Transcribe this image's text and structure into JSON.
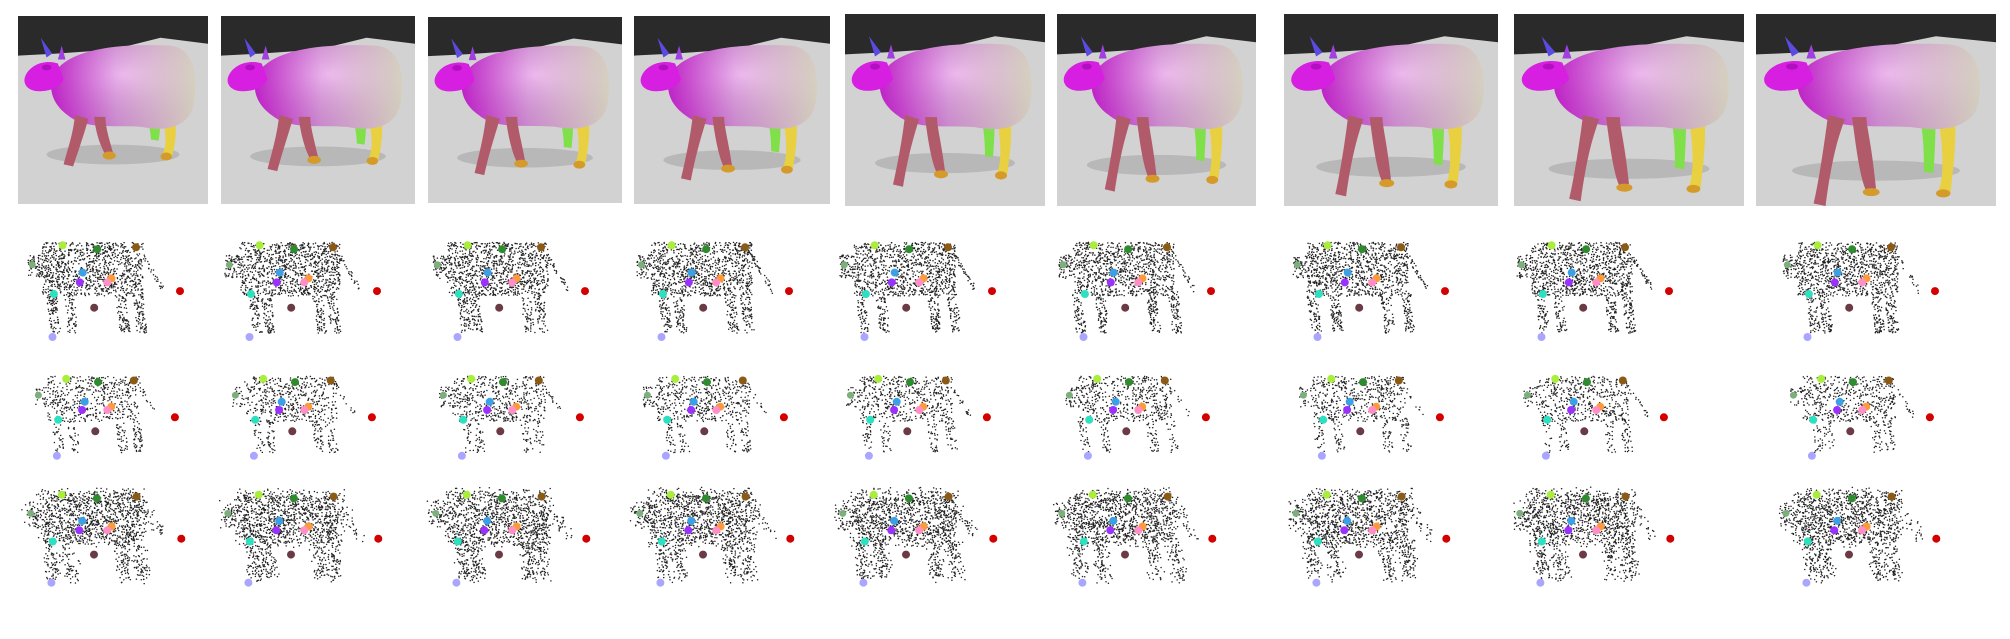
{
  "figure": {
    "columns": 9,
    "rows": [
      "rendered-mesh",
      "point-cloud-dense",
      "point-cloud-sparse",
      "point-cloud-noisy"
    ],
    "render_colors": {
      "background_top": "#2a2a2a",
      "floor": "#d2d2d2",
      "body_head": "#d61fe0",
      "body_mid": "#e59ae8",
      "body_rear": "#efe9d6",
      "horn": "#5b4be0",
      "legs_front": "#b15a6a",
      "hoof_front": "#d49a2a",
      "legs_rear": "#e8d040",
      "leg_green": "#7fe04a"
    },
    "keypoint_colors": [
      "#7bb07b",
      "#a9ee3a",
      "#2e8b2e",
      "#8b5a14",
      "#d40000",
      "#2de0c0",
      "#3ba0e6",
      "#9b30ff",
      "#ff9a3a",
      "#ff8fc6",
      "#6a3b44",
      "#aaa6ff"
    ]
  }
}
